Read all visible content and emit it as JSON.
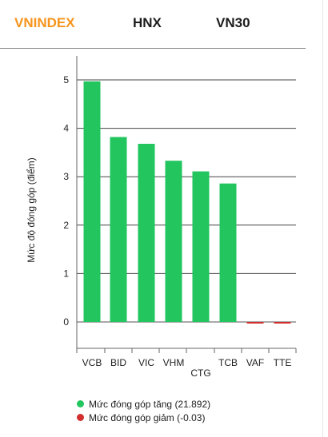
{
  "tabs": [
    {
      "label": "VNINDEX",
      "active": true
    },
    {
      "label": "HNX",
      "active": false
    },
    {
      "label": "VN30",
      "active": false
    }
  ],
  "colors": {
    "accent": "#f7941d",
    "increase": "#22c55e",
    "decrease": "#d32f2f"
  },
  "legend": {
    "increase_label": "Mức đóng góp tăng (21.892)",
    "decrease_label": "Mức đóng góp giảm (-0.03)"
  },
  "chart_data": {
    "type": "bar",
    "ylabel": "Mức độ đóng góp (điểm)",
    "xlabel": "",
    "ylim": [
      -0.5,
      5.5
    ],
    "yticks": [
      0,
      1,
      2,
      3,
      4,
      5
    ],
    "grid": true,
    "categories": [
      "VCB",
      "BID",
      "VIC",
      "VHM",
      "CTG",
      "TCB",
      "VAF",
      "TTE"
    ],
    "values": [
      4.97,
      3.82,
      3.68,
      3.33,
      3.11,
      2.86,
      -0.015,
      -0.015
    ]
  }
}
